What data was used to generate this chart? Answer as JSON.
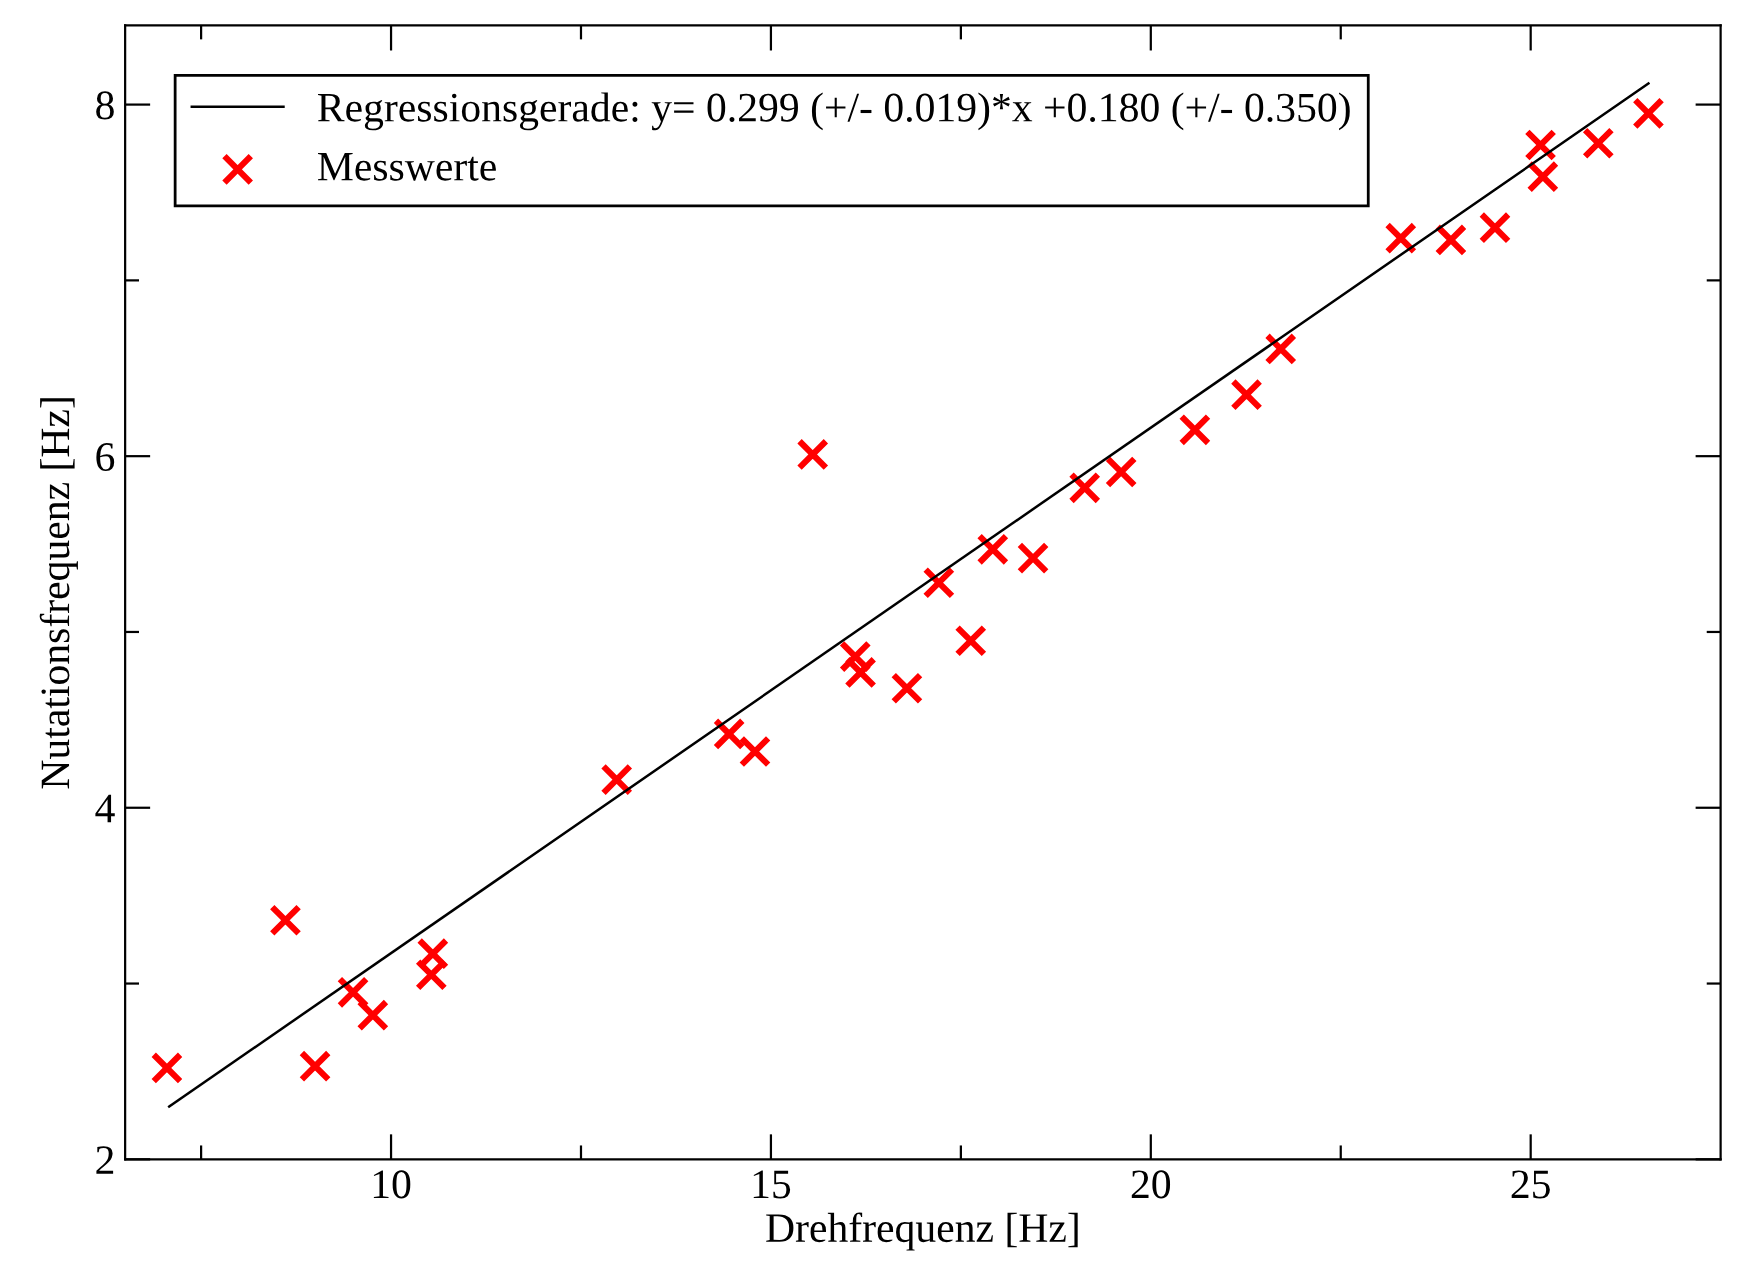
{
  "chart_data": {
    "type": "scatter",
    "xlabel": "Drehfrequenz [Hz]",
    "ylabel": "Nutationsfrequenz [Hz]",
    "xlim": [
      6.5,
      27.5
    ],
    "ylim": [
      2,
      8.45
    ],
    "xticks": [
      {
        "value": 7.5,
        "label": null
      },
      10,
      {
        "value": 12.5,
        "label": null
      },
      15,
      {
        "value": 17.5,
        "label": null
      },
      20,
      {
        "value": 22.5,
        "label": null
      },
      25
    ],
    "yticks": [
      2,
      {
        "value": 3,
        "label": null
      },
      4,
      {
        "value": 5,
        "label": null
      },
      6,
      {
        "value": 7,
        "label": null
      },
      8
    ],
    "grid": false,
    "legend": "top left",
    "series": [
      {
        "name": "Regressionsgerade: y= 0.299 (+/- 0.019)*x +0.180 (+/- 0.350)",
        "type": "line",
        "color": "#000000",
        "marker": "none",
        "line_style": "solid",
        "x": [
          7.08,
          26.55
        ],
        "values": [
          2.3,
          8.12
        ]
      },
      {
        "name": "Messwerte",
        "color": "#ff0000",
        "marker": "cross",
        "x": [
          7.05,
          8.61,
          9.0,
          9.5,
          9.76,
          10.55,
          10.53,
          12.97,
          14.45,
          14.79,
          15.55,
          16.11,
          16.18,
          16.79,
          17.21,
          17.63,
          17.92,
          18.45,
          19.13,
          19.61,
          20.58,
          21.26,
          21.71,
          23.29,
          23.95,
          24.53,
          25.13,
          25.16,
          25.89,
          26.55
        ],
        "values": [
          2.52,
          3.36,
          2.53,
          2.95,
          2.82,
          3.17,
          3.05,
          4.16,
          4.42,
          4.32,
          6.01,
          4.86,
          4.77,
          4.68,
          5.28,
          4.95,
          5.47,
          5.42,
          5.82,
          5.91,
          6.15,
          6.35,
          6.61,
          7.24,
          7.23,
          7.3,
          7.77,
          7.59,
          7.78,
          7.95
        ]
      }
    ]
  }
}
